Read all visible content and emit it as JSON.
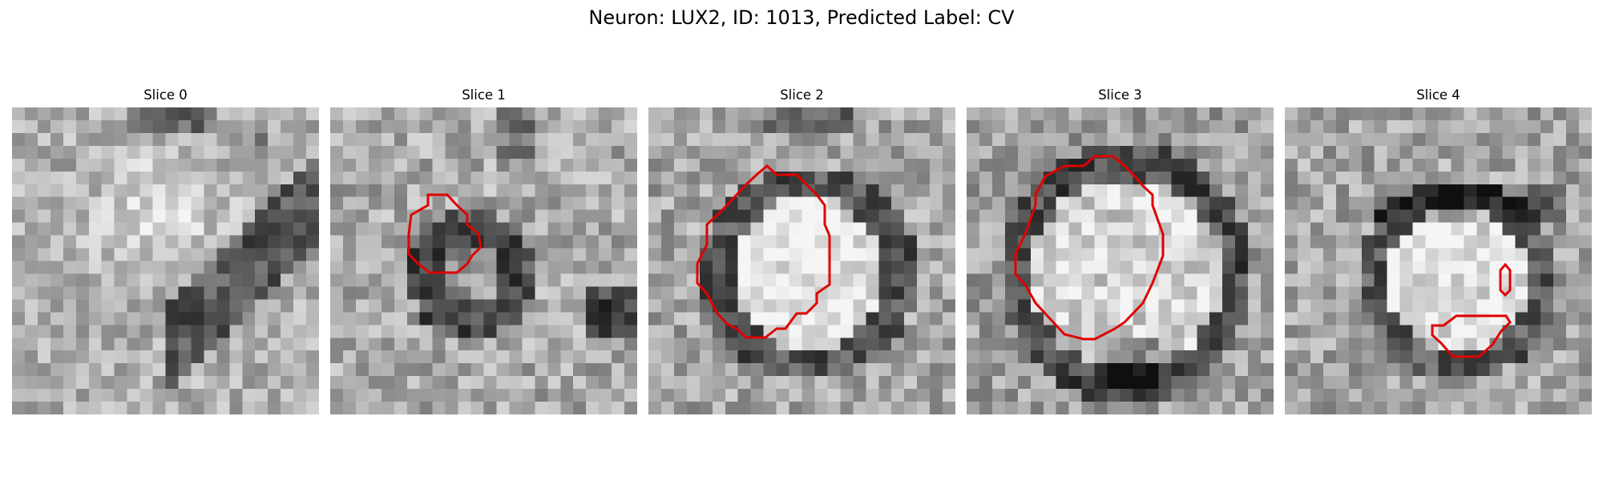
{
  "figure": {
    "suptitle": "Neuron: LUX2, ID: 1013, Predicted Label: CV",
    "contour_color": "#e00000",
    "panels": [
      {
        "title": "Slice 0",
        "grid": 24
      },
      {
        "title": "Slice 1",
        "grid": 24
      },
      {
        "title": "Slice 2",
        "grid": 24
      },
      {
        "title": "Slice 3",
        "grid": 24
      },
      {
        "title": "Slice 4",
        "grid": 24
      }
    ]
  }
}
